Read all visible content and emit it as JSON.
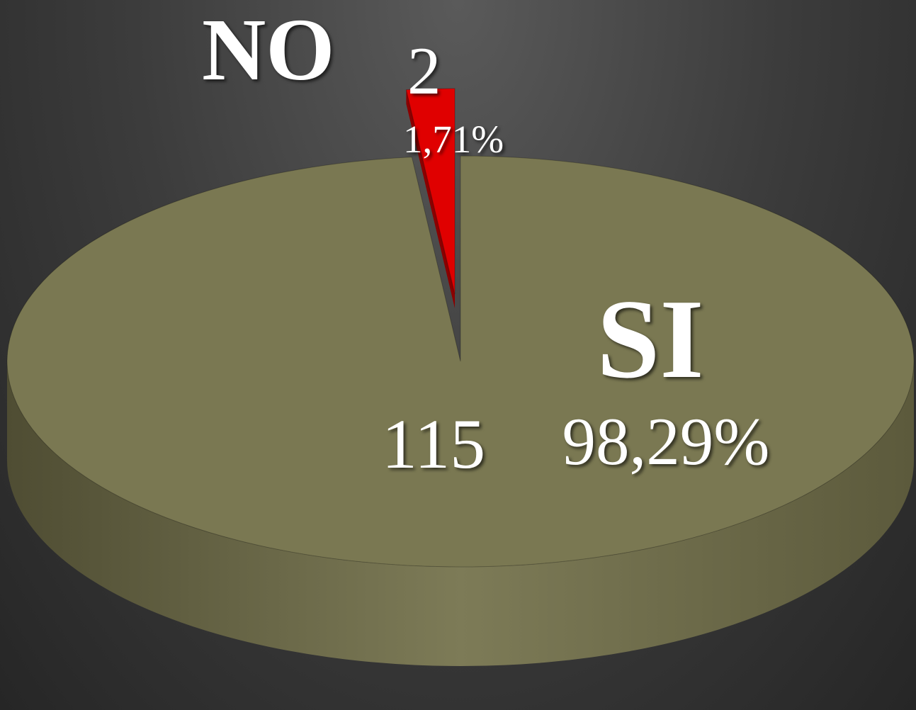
{
  "chart_data": {
    "type": "pie",
    "categories": [
      "NO",
      "SI"
    ],
    "values": [
      2,
      115
    ],
    "percentages": [
      1.71,
      98.29
    ],
    "percentage_labels": [
      "1,71%",
      "98,29%"
    ],
    "colors": [
      "#e00000",
      "#7a7852"
    ]
  }
}
